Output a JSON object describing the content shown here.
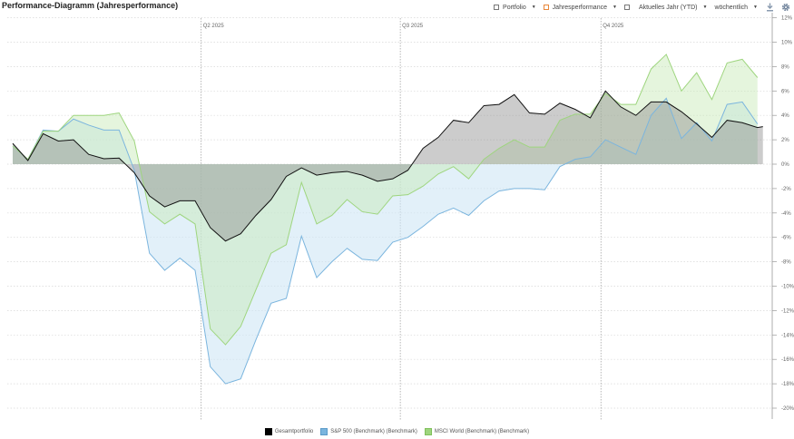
{
  "header": {
    "title": "Performance-Diagramm (Jahresperformance)"
  },
  "toolbar": {
    "items": [
      {
        "label": "Portfolio",
        "icon": "square-outline-icon",
        "color": "#777777"
      },
      {
        "label": "Jahresperformance",
        "icon": "square-outline-icon",
        "color": "#e8873a"
      },
      {
        "label": "Aktuelles Jahr (YTD)",
        "icon": "calendar-icon",
        "color": "#777777"
      },
      {
        "label": "wöchentlich",
        "icon": "",
        "color": ""
      }
    ],
    "download_icon": "download-icon",
    "settings_icon": "gear-icon"
  },
  "legend": [
    {
      "label": "Gesamtportfolio",
      "color": "#000000"
    },
    {
      "label": "S&P 500 (Benchmark) (Benchmark)",
      "color": "#7bb5de"
    },
    {
      "label": "MSCI World (Benchmark) (Benchmark)",
      "color": "#9ed57e"
    }
  ],
  "chart_data": {
    "type": "area",
    "title": "Performance-Diagramm (Jahresperformance)",
    "xlabel": "",
    "ylabel": "",
    "ylim": [
      -21,
      12
    ],
    "yticks": [
      "12%",
      "10%",
      "8%",
      "6%",
      "4%",
      "2%",
      "0%",
      "-2%",
      "-4%",
      "-6%",
      "-8%",
      "-10%",
      "-12%",
      "-14%",
      "-16%",
      "-18%",
      "-20%"
    ],
    "y_axis_position": "right",
    "grid": true,
    "legend_position": "bottom",
    "quarter_markers": [
      {
        "label": "Q2 2025",
        "index": 12.4
      },
      {
        "label": "Q3 2025",
        "index": 25.5
      },
      {
        "label": "Q4 2025",
        "index": 38.7
      }
    ],
    "x_count": 50,
    "series": [
      {
        "name": "Gesamtportfolio",
        "color": "#000000",
        "values": [
          1.7,
          0.3,
          2.5,
          1.9,
          2.0,
          0.8,
          0.45,
          0.5,
          -0.7,
          -2.6,
          -3.5,
          -3.0,
          -3.0,
          -5.2,
          -6.3,
          -5.7,
          -4.2,
          -2.9,
          -1.0,
          -0.3,
          -0.9,
          -0.7,
          -0.6,
          -0.9,
          -1.4,
          -1.2,
          -0.5,
          1.3,
          2.2,
          3.6,
          3.4,
          4.8,
          4.9,
          5.7,
          4.2,
          4.1,
          5.0,
          4.5,
          3.8,
          6.0,
          4.7,
          4.0,
          5.1,
          5.1,
          4.3,
          3.3,
          2.2,
          3.6,
          3.4,
          3.0
        ]
      },
      {
        "name": "S&P 500 (Benchmark) (Benchmark)",
        "color": "#7bb5de",
        "values": [
          1.5,
          0.4,
          2.8,
          2.7,
          3.7,
          3.2,
          2.8,
          2.8,
          -0.5,
          -7.3,
          -8.7,
          -7.7,
          -8.7,
          -16.6,
          -18.0,
          -17.6,
          -14.4,
          -11.4,
          -11.0,
          -5.9,
          -9.3,
          -8.0,
          -6.9,
          -7.8,
          -7.9,
          -6.4,
          -6.0,
          -5.1,
          -4.1,
          -3.6,
          -4.2,
          -3.0,
          -2.2,
          -2.0,
          -2.0,
          -2.1,
          -0.2,
          0.4,
          0.6,
          2.0,
          1.4,
          0.8,
          4.0,
          5.4,
          2.1,
          3.4,
          1.9,
          4.9,
          5.1,
          3.3
        ]
      },
      {
        "name": "MSCI World (Benchmark) (Benchmark)",
        "color": "#9ed57e",
        "values": [
          1.5,
          0.4,
          2.7,
          2.7,
          4.0,
          4.0,
          4.0,
          4.2,
          1.9,
          -3.9,
          -4.9,
          -4.1,
          -4.9,
          -13.5,
          -14.8,
          -13.3,
          -10.3,
          -7.3,
          -6.6,
          -1.5,
          -4.9,
          -4.2,
          -2.9,
          -3.9,
          -4.1,
          -2.6,
          -2.5,
          -1.8,
          -0.8,
          -0.2,
          -1.2,
          0.4,
          1.3,
          2.0,
          1.4,
          1.4,
          3.6,
          4.1,
          4.1,
          5.8,
          4.9,
          4.9,
          7.8,
          9.0,
          6.0,
          7.5,
          5.3,
          8.3,
          8.6,
          7.1
        ]
      }
    ]
  }
}
